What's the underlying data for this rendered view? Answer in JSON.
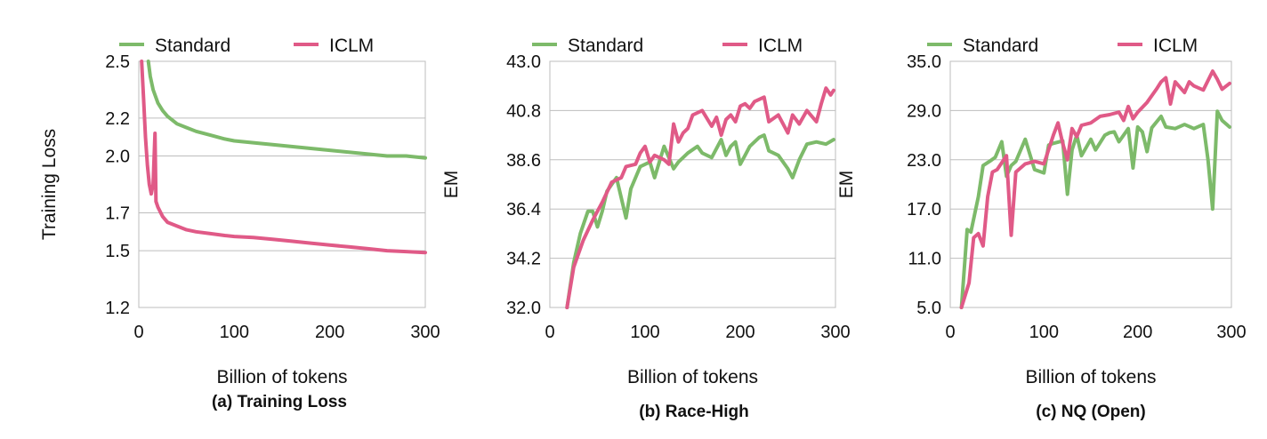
{
  "chart_data": [
    {
      "type": "line",
      "caption": "(a) Training Loss",
      "xlabel": "Billion of tokens",
      "ylabel": "Training Loss",
      "xlim": [
        0,
        300
      ],
      "ylim": [
        1.2,
        2.5
      ],
      "xticks": [
        "0",
        "100",
        "200",
        "300"
      ],
      "yticks": [
        "1.2",
        "1.5",
        "1.7",
        "2.0",
        "2.2",
        "2.5"
      ],
      "grid": true,
      "legend": "top",
      "series": [
        {
          "name": "Standard",
          "color": "#7dba6a",
          "x": [
            10,
            12,
            15,
            20,
            25,
            30,
            40,
            50,
            60,
            75,
            90,
            100,
            120,
            140,
            160,
            180,
            200,
            220,
            240,
            260,
            280,
            300
          ],
          "y": [
            2.5,
            2.42,
            2.35,
            2.28,
            2.24,
            2.21,
            2.17,
            2.15,
            2.13,
            2.11,
            2.09,
            2.08,
            2.07,
            2.06,
            2.05,
            2.04,
            2.03,
            2.02,
            2.01,
            2.0,
            2.0,
            1.99
          ]
        },
        {
          "name": "ICLM",
          "color": "#e05a87",
          "x": [
            3,
            5,
            7,
            9,
            11,
            13,
            15,
            17,
            18,
            20,
            25,
            30,
            40,
            50,
            60,
            75,
            90,
            100,
            120,
            140,
            160,
            180,
            200,
            220,
            240,
            260,
            280,
            300
          ],
          "y": [
            2.5,
            2.3,
            2.1,
            1.95,
            1.85,
            1.8,
            1.85,
            2.12,
            1.76,
            1.73,
            1.68,
            1.65,
            1.63,
            1.61,
            1.6,
            1.59,
            1.58,
            1.575,
            1.57,
            1.56,
            1.55,
            1.54,
            1.53,
            1.52,
            1.51,
            1.5,
            1.495,
            1.49
          ]
        }
      ]
    },
    {
      "type": "line",
      "caption": "(b) Race-High",
      "xlabel": "Billion of tokens",
      "ylabel": "EM",
      "xlim": [
        0,
        300
      ],
      "ylim": [
        32.0,
        43.0
      ],
      "xticks": [
        "0",
        "100",
        "200",
        "300"
      ],
      "yticks": [
        "32.0",
        "34.2",
        "36.4",
        "38.6",
        "40.8",
        "43.0"
      ],
      "grid": true,
      "legend": "top",
      "series": [
        {
          "name": "Standard",
          "color": "#7dba6a",
          "x": [
            18,
            25,
            32,
            40,
            45,
            50,
            55,
            60,
            70,
            80,
            85,
            95,
            105,
            110,
            115,
            120,
            130,
            135,
            145,
            155,
            160,
            170,
            180,
            185,
            190,
            195,
            200,
            205,
            210,
            220,
            225,
            230,
            240,
            250,
            255,
            262,
            270,
            280,
            290,
            298
          ],
          "y": [
            32.0,
            34.0,
            35.3,
            36.3,
            36.3,
            35.6,
            36.3,
            37.2,
            37.8,
            36.0,
            37.3,
            38.3,
            38.5,
            37.8,
            38.5,
            39.2,
            38.2,
            38.5,
            38.9,
            39.2,
            38.9,
            38.7,
            39.5,
            38.8,
            39.2,
            39.4,
            38.4,
            38.8,
            39.2,
            39.6,
            39.7,
            39.0,
            38.8,
            38.2,
            37.8,
            38.6,
            39.3,
            39.4,
            39.3,
            39.5
          ]
        },
        {
          "name": "ICLM",
          "color": "#e05a87",
          "x": [
            18,
            25,
            35,
            45,
            55,
            65,
            75,
            80,
            90,
            95,
            100,
            105,
            110,
            120,
            125,
            130,
            135,
            140,
            145,
            150,
            160,
            170,
            175,
            180,
            185,
            190,
            195,
            200,
            205,
            210,
            215,
            220,
            225,
            230,
            240,
            250,
            255,
            262,
            270,
            280,
            285,
            290,
            295,
            298
          ],
          "y": [
            32.0,
            33.8,
            35.0,
            35.9,
            36.7,
            37.6,
            37.8,
            38.3,
            38.4,
            38.9,
            39.2,
            38.5,
            38.8,
            38.6,
            38.4,
            40.2,
            39.4,
            39.8,
            40.0,
            40.6,
            40.8,
            40.1,
            40.5,
            39.7,
            40.4,
            40.6,
            40.3,
            41.0,
            41.1,
            40.9,
            41.2,
            41.3,
            41.4,
            40.3,
            40.6,
            39.8,
            40.6,
            40.2,
            40.8,
            40.3,
            41.1,
            41.8,
            41.5,
            41.7
          ]
        }
      ]
    },
    {
      "type": "line",
      "caption": "(c) NQ (Open)",
      "xlabel": "Billion of tokens",
      "ylabel": "EM",
      "xlim": [
        0,
        300
      ],
      "ylim": [
        5.0,
        35.0
      ],
      "xticks": [
        "0",
        "100",
        "200",
        "300"
      ],
      "yticks": [
        "5.0",
        "11.0",
        "17.0",
        "23.0",
        "29.0",
        "35.0"
      ],
      "grid": true,
      "legend": "top",
      "series": [
        {
          "name": "Standard",
          "color": "#7dba6a",
          "x": [
            12,
            18,
            22,
            30,
            35,
            42,
            48,
            55,
            60,
            65,
            70,
            80,
            90,
            100,
            105,
            110,
            120,
            125,
            130,
            135,
            140,
            150,
            155,
            165,
            170,
            175,
            180,
            190,
            195,
            200,
            205,
            210,
            215,
            225,
            230,
            240,
            250,
            260,
            270,
            275,
            280,
            285,
            290,
            298
          ],
          "y": [
            5.0,
            14.5,
            14.2,
            18.5,
            22.3,
            22.8,
            23.3,
            25.2,
            21.0,
            22.3,
            22.8,
            25.5,
            21.8,
            21.4,
            24.8,
            25.0,
            25.3,
            18.8,
            24.2,
            26.0,
            23.5,
            25.5,
            24.2,
            26.0,
            26.3,
            26.4,
            25.2,
            26.8,
            22.0,
            27.0,
            26.4,
            24.0,
            26.9,
            28.3,
            27.0,
            26.8,
            27.3,
            26.8,
            27.3,
            23.0,
            17.0,
            28.9,
            27.8,
            27.0
          ]
        },
        {
          "name": "ICLM",
          "color": "#e05a87",
          "x": [
            12,
            20,
            25,
            30,
            35,
            40,
            45,
            50,
            60,
            65,
            70,
            80,
            90,
            100,
            110,
            115,
            120,
            125,
            130,
            135,
            140,
            150,
            160,
            170,
            180,
            185,
            190,
            195,
            200,
            210,
            220,
            225,
            230,
            235,
            240,
            250,
            255,
            260,
            270,
            280,
            285,
            290,
            298
          ],
          "y": [
            5.0,
            8.0,
            13.5,
            14.0,
            12.5,
            18.5,
            21.5,
            21.8,
            23.5,
            13.8,
            21.5,
            22.5,
            22.8,
            22.5,
            26.0,
            27.5,
            25.0,
            23.0,
            26.8,
            25.8,
            27.2,
            27.5,
            28.3,
            28.5,
            28.8,
            27.8,
            29.5,
            28.0,
            28.8,
            30.0,
            31.6,
            32.5,
            33.0,
            29.8,
            32.5,
            31.2,
            32.5,
            32.0,
            31.5,
            33.8,
            32.8,
            31.6,
            32.3
          ]
        }
      ]
    }
  ]
}
